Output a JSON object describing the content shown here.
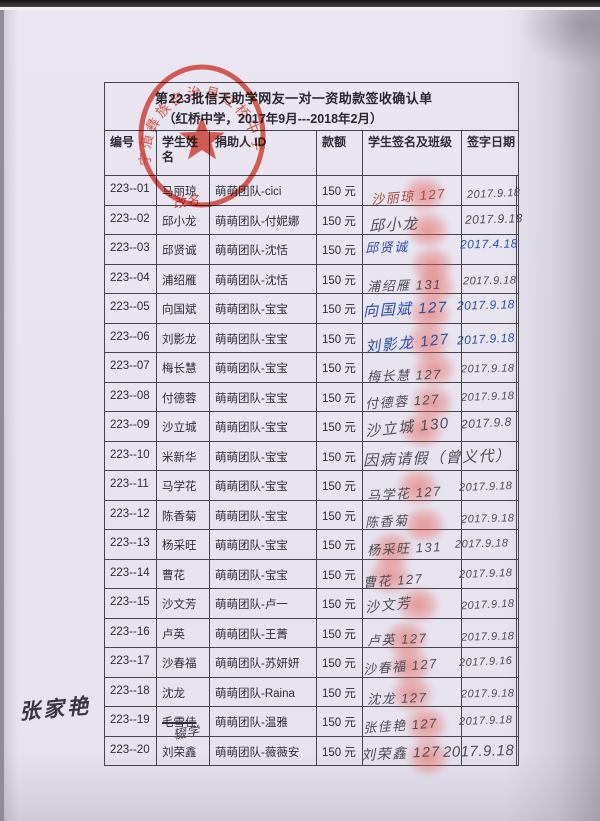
{
  "doc": {
    "title": "第223批信天助学网友一对一资助款签收确认单",
    "subtitle": "（红桥中学，2017年9月---2018年2月）"
  },
  "table": {
    "headers": [
      "编号",
      "学生姓名",
      "捐助人 ID",
      "款额",
      "学生签名及班级",
      "签字日期"
    ],
    "rows": [
      {
        "no": "223--01",
        "student": "马丽琼",
        "student_note": "改名",
        "note_ink": "red",
        "donor_id": "萌萌团队-cici",
        "amount": "150 元",
        "signature": "沙丽琼 127",
        "sign_date": "2017.9.18",
        "ink": "red",
        "date_ink": "gray"
      },
      {
        "no": "223--02",
        "student": "邱小龙",
        "donor_id": "萌萌团队-付妮娜",
        "amount": "150 元",
        "signature": "邱小龙",
        "sign_date": "2017.9.18",
        "ink": "gray"
      },
      {
        "no": "223--03",
        "student": "邱贤诚",
        "donor_id": "萌萌团队-沈恬",
        "amount": "150 元",
        "signature": "邱贤诚",
        "sign_date": "2017.4.18",
        "ink": "blue"
      },
      {
        "no": "223--04",
        "student": "浦绍雁",
        "donor_id": "萌萌团队-沈恬",
        "amount": "150 元",
        "signature": "浦绍雁 131",
        "sign_date": "2017.9.18",
        "ink": "gray"
      },
      {
        "no": "223--05",
        "student": "向国斌",
        "donor_id": "萌萌团队-宝宝",
        "amount": "150 元",
        "signature": "向国斌 127",
        "sign_date": "2017.9.18",
        "ink": "blue"
      },
      {
        "no": "223--06",
        "student": "刘影龙",
        "donor_id": "萌萌团队-宝宝",
        "amount": "150 元",
        "signature": "刘影龙 127",
        "sign_date": "2017.9.18",
        "ink": "blue"
      },
      {
        "no": "223--07",
        "student": "梅长慧",
        "donor_id": "萌萌团队-宝宝",
        "amount": "150 元",
        "signature": "梅长慧 127",
        "sign_date": "2017.9.18",
        "ink": "gray"
      },
      {
        "no": "223--08",
        "student": "付德蓉",
        "donor_id": "萌萌团队-宝宝",
        "amount": "150 元",
        "signature": "付德蓉 127",
        "sign_date": "2017.9.18",
        "ink": "gray"
      },
      {
        "no": "223--09",
        "student": "沙立城",
        "donor_id": "萌萌团队-宝宝",
        "amount": "150 元",
        "signature": "沙立城 130",
        "sign_date": "2017.9.8",
        "ink": "gray"
      },
      {
        "no": "223--10",
        "student": "米新华",
        "donor_id": "萌萌团队-宝宝",
        "amount": "150 元",
        "signature": "因病请假（曾义代）",
        "sign_date": "",
        "ink": "gray",
        "note_spans": true
      },
      {
        "no": "223--11",
        "student": "马学花",
        "donor_id": "萌萌团队-宝宝",
        "amount": "150 元",
        "signature": "马学花 127",
        "sign_date": "2017.9.18",
        "ink": "gray"
      },
      {
        "no": "223--12",
        "student": "陈香菊",
        "donor_id": "萌萌团队-宝宝",
        "amount": "150 元",
        "signature": "陈香菊",
        "sign_date": "2017.9.18",
        "ink": "gray"
      },
      {
        "no": "223--13",
        "student": "杨采旺",
        "donor_id": "萌萌团队-宝宝",
        "amount": "150 元",
        "signature": "杨采旺 131",
        "sign_date": "2017.9.18",
        "ink": "gray"
      },
      {
        "no": "223--14",
        "student": "曹花",
        "donor_id": "萌萌团队-宝宝",
        "amount": "150 元",
        "signature": "曹花  127",
        "sign_date": "2017.9.18",
        "ink": "gray"
      },
      {
        "no": "223--15",
        "student": "沙文芳",
        "donor_id": "萌萌团队-卢一",
        "amount": "150 元",
        "signature": "沙文芳",
        "sign_date": "2017.9.18",
        "ink": "gray"
      },
      {
        "no": "223--16",
        "student": "卢英",
        "donor_id": "萌萌团队-王菁",
        "amount": "150 元",
        "signature": "卢英 127",
        "sign_date": "2017.9.18",
        "ink": "gray"
      },
      {
        "no": "223--17",
        "student": "沙春福",
        "donor_id": "萌萌团队-苏妍妍",
        "amount": "150 元",
        "signature": "沙春福 127",
        "sign_date": "2017.9.16",
        "ink": "gray"
      },
      {
        "no": "223--18",
        "student": "沈龙",
        "donor_id": "萌萌团队-Raina",
        "amount": "150 元",
        "signature": "沈龙  127",
        "sign_date": "2017.9.18",
        "ink": "gray"
      },
      {
        "no": "223--19",
        "student": "毛雪佳",
        "student_struck": true,
        "student_note": "辍学",
        "note_ink": "gray",
        "donor_id": "萌萌团队-温雅",
        "amount": "150 元",
        "signature": "张佳艳 127",
        "sign_date": "2017.9.18",
        "ink": "gray"
      },
      {
        "no": "223--20",
        "student": "刘荣鑫",
        "donor_id": "萌萌团队-薇薇安",
        "amount": "150 元",
        "signature": "刘荣鑫 127",
        "sign_date": "2017.9.18",
        "ink": "gray"
      }
    ]
  },
  "stamp": {
    "seal_text": "宁蒗彝族自治县红桥中学",
    "shape": "circular seal with five-pointed star",
    "color": "#dd3524"
  },
  "margin_note": "张家艳",
  "colors": {
    "paper": "#e8e4f0",
    "table_line": "#45434b",
    "print_text": "#2e2c34",
    "stamp_red": "#dd3524",
    "fingerprint": "#e4584e",
    "ink_blue": "#2d4da8",
    "ink_gray": "#4e4c56",
    "ink_red": "#a8473b"
  }
}
